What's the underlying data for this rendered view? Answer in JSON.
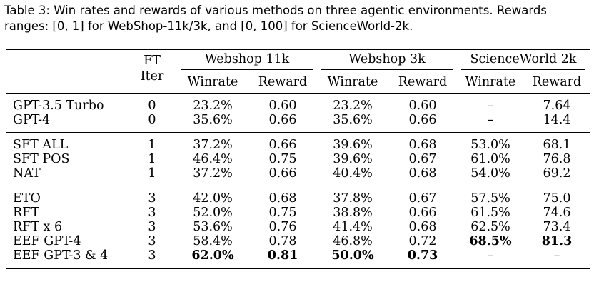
{
  "caption": {
    "line1": "Table 3: Win rates and rewards of various methods on three agentic environments. Rewards",
    "line2": "ranges: [0, 1] for WebShop-11k/3k, and [0, 100] for ScienceWorld-2k."
  },
  "header": {
    "ft_line1": "FT",
    "ft_line2": "Iter",
    "group1": "Webshop 11k",
    "group2": "Webshop 3k",
    "group3": "ScienceWorld 2k",
    "winrate": "Winrate",
    "reward": "Reward"
  },
  "rows": [
    {
      "method": "GPT-3.5 Turbo",
      "ft": "0",
      "ws11_win": "23.2%",
      "ws11_rew": "0.60",
      "ws3_win": "23.2%",
      "ws3_rew": "0.60",
      "sw_win": "–",
      "sw_rew": "7.64"
    },
    {
      "method": "GPT-4",
      "ft": "0",
      "ws11_win": "35.6%",
      "ws11_rew": "0.66",
      "ws3_win": "35.6%",
      "ws3_rew": "0.66",
      "sw_win": "–",
      "sw_rew": "14.4"
    },
    {
      "method": "SFT ALL",
      "ft": "1",
      "ws11_win": "37.2%",
      "ws11_rew": "0.66",
      "ws3_win": "39.6%",
      "ws3_rew": "0.68",
      "sw_win": "53.0%",
      "sw_rew": "68.1"
    },
    {
      "method": "SFT POS",
      "ft": "1",
      "ws11_win": "46.4%",
      "ws11_rew": "0.75",
      "ws3_win": "39.6%",
      "ws3_rew": "0.67",
      "sw_win": "61.0%",
      "sw_rew": "76.8"
    },
    {
      "method": "NAT",
      "ft": "1",
      "ws11_win": "37.2%",
      "ws11_rew": "0.66",
      "ws3_win": "40.4%",
      "ws3_rew": "0.68",
      "sw_win": "54.0%",
      "sw_rew": "69.2"
    },
    {
      "method": "ETO",
      "ft": "3",
      "ws11_win": "42.0%",
      "ws11_rew": "0.68",
      "ws3_win": "37.8%",
      "ws3_rew": "0.67",
      "sw_win": "57.5%",
      "sw_rew": "75.0"
    },
    {
      "method": "RFT",
      "ft": "3",
      "ws11_win": "52.0%",
      "ws11_rew": "0.75",
      "ws3_win": "38.8%",
      "ws3_rew": "0.66",
      "sw_win": "61.5%",
      "sw_rew": "74.6"
    },
    {
      "method": "RFT x 6",
      "ft": "3",
      "ws11_win": "53.6%",
      "ws11_rew": "0.76",
      "ws3_win": "41.4%",
      "ws3_rew": "0.68",
      "sw_win": "62.5%",
      "sw_rew": "73.4"
    },
    {
      "method": "EEF GPT-4",
      "ft": "3",
      "ws11_win": "58.4%",
      "ws11_rew": "0.78",
      "ws3_win": "46.8%",
      "ws3_rew": "0.72",
      "sw_win": "68.5%",
      "sw_rew": "81.3"
    },
    {
      "method": "EEF GPT-3 & 4",
      "ft": "3",
      "ws11_win": "62.0%",
      "ws11_rew": "0.81",
      "ws3_win": "50.0%",
      "ws3_rew": "0.73",
      "sw_win": "–",
      "sw_rew": "–"
    }
  ]
}
